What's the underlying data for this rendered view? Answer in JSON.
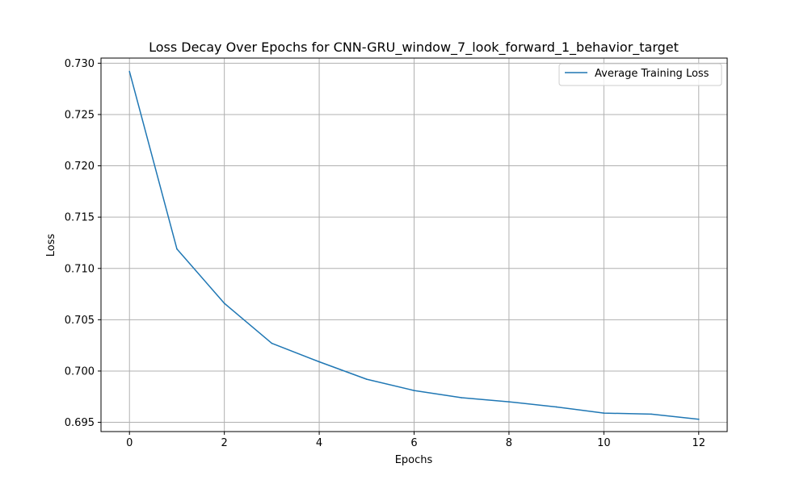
{
  "chart_data": {
    "type": "line",
    "title": "Loss Decay Over Epochs for CNN-GRU_window_7_look_forward_1_behavior_target",
    "xlabel": "Epochs",
    "ylabel": "Loss",
    "x": [
      0,
      1,
      2,
      3,
      4,
      5,
      6,
      7,
      8,
      9,
      10,
      11,
      12
    ],
    "series": [
      {
        "name": "Average Training Loss",
        "color": "#1f77b4",
        "values": [
          0.7292,
          0.7119,
          0.7066,
          0.7027,
          0.7009,
          0.6992,
          0.6981,
          0.6974,
          0.697,
          0.6965,
          0.6959,
          0.6958,
          0.6953
        ]
      }
    ],
    "xlim": [
      -0.6,
      12.6
    ],
    "ylim": [
      0.6941,
      0.7305
    ],
    "xticks": [
      0,
      2,
      4,
      6,
      8,
      10,
      12
    ],
    "xtick_labels": [
      "0",
      "2",
      "4",
      "6",
      "8",
      "10",
      "12"
    ],
    "yticks": [
      0.695,
      0.7,
      0.705,
      0.71,
      0.715,
      0.72,
      0.725,
      0.73
    ],
    "ytick_labels": [
      "0.695",
      "0.700",
      "0.705",
      "0.710",
      "0.715",
      "0.720",
      "0.725",
      "0.730"
    ],
    "grid": true,
    "legend_position": "top-right"
  }
}
